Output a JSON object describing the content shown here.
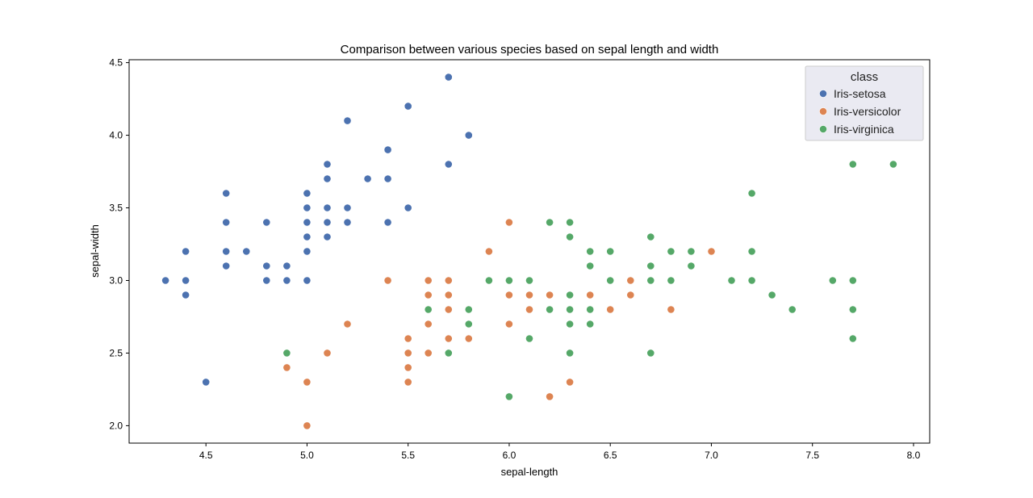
{
  "chart_data": {
    "type": "scatter",
    "title": "Comparison between various species based on sepal length and width",
    "xlabel": "sepal-length",
    "ylabel": "sepal-width",
    "xlim": [
      4.12,
      8.08
    ],
    "ylim": [
      1.88,
      4.52
    ],
    "xticks": [
      4.5,
      5.0,
      5.5,
      6.0,
      6.5,
      7.0,
      7.5,
      8.0
    ],
    "xtick_labels": [
      "4.5",
      "5.0",
      "5.5",
      "6.0",
      "6.5",
      "7.0",
      "7.5",
      "8.0"
    ],
    "yticks": [
      2.0,
      2.5,
      3.0,
      3.5,
      4.0,
      4.5
    ],
    "ytick_labels": [
      "2.0",
      "2.5",
      "3.0",
      "3.5",
      "4.0",
      "4.5"
    ],
    "grid": false,
    "legend": {
      "title": "class",
      "placement": "top-right"
    },
    "series": [
      {
        "name": "Iris-setosa",
        "color": "#4c72b0",
        "points": [
          [
            4.3,
            3.0
          ],
          [
            4.4,
            3.2
          ],
          [
            4.4,
            3.0
          ],
          [
            4.4,
            2.9
          ],
          [
            4.5,
            2.3
          ],
          [
            4.6,
            3.6
          ],
          [
            4.6,
            3.4
          ],
          [
            4.6,
            3.2
          ],
          [
            4.6,
            3.1
          ],
          [
            4.7,
            3.2
          ],
          [
            4.8,
            3.4
          ],
          [
            4.8,
            3.1
          ],
          [
            4.8,
            3.0
          ],
          [
            4.9,
            3.1
          ],
          [
            4.9,
            3.0
          ],
          [
            5.0,
            3.6
          ],
          [
            5.0,
            3.5
          ],
          [
            5.0,
            3.4
          ],
          [
            5.0,
            3.3
          ],
          [
            5.0,
            3.2
          ],
          [
            5.0,
            3.0
          ],
          [
            5.1,
            3.8
          ],
          [
            5.1,
            3.7
          ],
          [
            5.1,
            3.5
          ],
          [
            5.1,
            3.4
          ],
          [
            5.1,
            3.3
          ],
          [
            5.2,
            4.1
          ],
          [
            5.2,
            3.5
          ],
          [
            5.2,
            3.4
          ],
          [
            5.3,
            3.7
          ],
          [
            5.4,
            3.9
          ],
          [
            5.4,
            3.7
          ],
          [
            5.4,
            3.4
          ],
          [
            5.5,
            4.2
          ],
          [
            5.5,
            3.5
          ],
          [
            5.7,
            4.4
          ],
          [
            5.7,
            3.8
          ],
          [
            5.8,
            4.0
          ]
        ]
      },
      {
        "name": "Iris-versicolor",
        "color": "#dd8452",
        "points": [
          [
            4.9,
            2.4
          ],
          [
            5.0,
            2.3
          ],
          [
            5.0,
            2.0
          ],
          [
            5.1,
            2.5
          ],
          [
            5.2,
            2.7
          ],
          [
            5.4,
            3.0
          ],
          [
            5.5,
            2.6
          ],
          [
            5.5,
            2.5
          ],
          [
            5.5,
            2.4
          ],
          [
            5.5,
            2.3
          ],
          [
            5.6,
            3.0
          ],
          [
            5.6,
            2.9
          ],
          [
            5.6,
            2.7
          ],
          [
            5.6,
            2.5
          ],
          [
            5.7,
            3.0
          ],
          [
            5.7,
            2.9
          ],
          [
            5.7,
            2.8
          ],
          [
            5.7,
            2.6
          ],
          [
            5.8,
            2.6
          ],
          [
            5.8,
            2.7
          ],
          [
            5.9,
            3.2
          ],
          [
            6.0,
            3.4
          ],
          [
            6.0,
            2.9
          ],
          [
            6.0,
            2.7
          ],
          [
            6.1,
            2.9
          ],
          [
            6.1,
            2.8
          ],
          [
            6.2,
            2.9
          ],
          [
            6.2,
            2.2
          ],
          [
            6.3,
            2.3
          ],
          [
            6.4,
            2.9
          ],
          [
            6.5,
            2.8
          ],
          [
            6.6,
            3.0
          ],
          [
            6.6,
            2.9
          ],
          [
            6.8,
            2.8
          ],
          [
            7.0,
            3.2
          ]
        ]
      },
      {
        "name": "Iris-virginica",
        "color": "#55a868",
        "points": [
          [
            4.9,
            2.5
          ],
          [
            5.6,
            2.8
          ],
          [
            5.7,
            2.5
          ],
          [
            5.8,
            2.8
          ],
          [
            5.8,
            2.7
          ],
          [
            5.9,
            3.0
          ],
          [
            6.0,
            3.0
          ],
          [
            6.0,
            2.2
          ],
          [
            6.1,
            3.0
          ],
          [
            6.1,
            2.6
          ],
          [
            6.2,
            3.4
          ],
          [
            6.2,
            2.8
          ],
          [
            6.3,
            3.4
          ],
          [
            6.3,
            3.3
          ],
          [
            6.3,
            2.9
          ],
          [
            6.3,
            2.8
          ],
          [
            6.3,
            2.7
          ],
          [
            6.3,
            2.5
          ],
          [
            6.4,
            3.2
          ],
          [
            6.4,
            3.1
          ],
          [
            6.4,
            2.8
          ],
          [
            6.4,
            2.7
          ],
          [
            6.5,
            3.2
          ],
          [
            6.5,
            3.0
          ],
          [
            6.7,
            3.3
          ],
          [
            6.7,
            3.1
          ],
          [
            6.7,
            3.0
          ],
          [
            6.7,
            2.5
          ],
          [
            6.8,
            3.2
          ],
          [
            6.8,
            3.0
          ],
          [
            6.9,
            3.2
          ],
          [
            6.9,
            3.1
          ],
          [
            7.1,
            3.0
          ],
          [
            7.2,
            3.6
          ],
          [
            7.2,
            3.2
          ],
          [
            7.2,
            3.0
          ],
          [
            7.3,
            2.9
          ],
          [
            7.4,
            2.8
          ],
          [
            7.6,
            3.0
          ],
          [
            7.7,
            3.8
          ],
          [
            7.7,
            3.0
          ],
          [
            7.7,
            2.8
          ],
          [
            7.7,
            2.6
          ],
          [
            7.9,
            3.8
          ]
        ]
      }
    ]
  }
}
